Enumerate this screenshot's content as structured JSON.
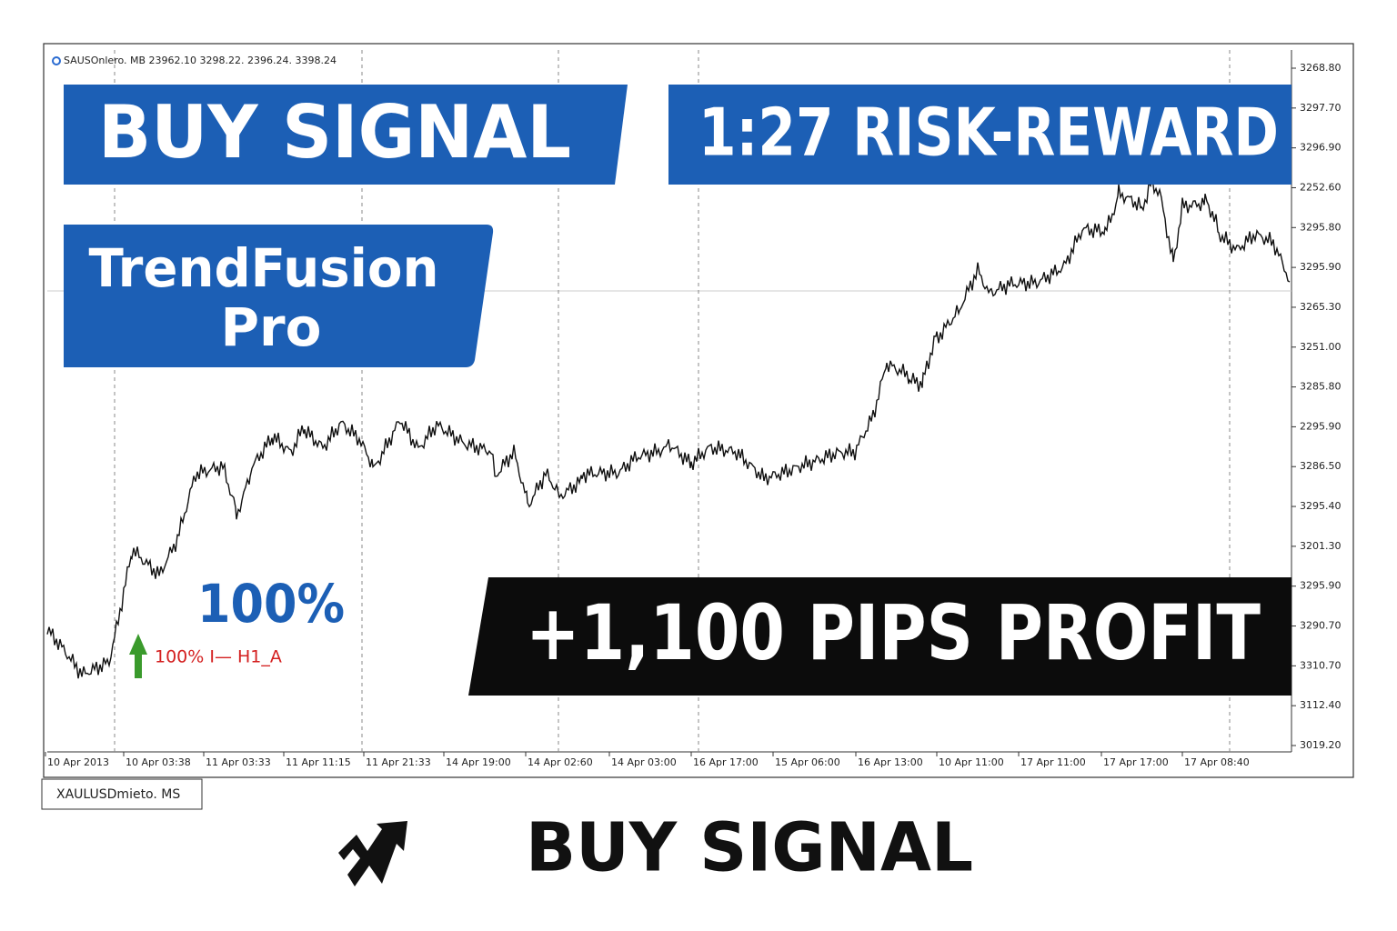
{
  "header": {
    "symbol_info": "SAUSOnlero. MB  23962.10  3298.22. 2396.24. 3398.24"
  },
  "banners": {
    "buy_signal": "BUY SIGNAL",
    "risk_reward": "1:27 RISK-REWARD",
    "product": [
      "TrendFusion",
      "Pro"
    ],
    "profit": "+1,100 PIPS PROFIT"
  },
  "indicator": {
    "percent": "100%",
    "label": "100% I— H1_A"
  },
  "price_axis": [
    "3268.80",
    "3297.70",
    "3296.90",
    "2252.60",
    "3295.80",
    "3295.90",
    "3265.30",
    "3251.00",
    "3285.80",
    "2295.90",
    "3286.50",
    "3295.40",
    "3201.30",
    "3295.90",
    "3290.70",
    "3310.70",
    "3112.40",
    "3019.20"
  ],
  "time_axis": [
    "10 Apr 2013",
    "10 Apr 03:38",
    "11 Apr 03:33",
    "11 Apr 11:15",
    "11 Apr 21:33",
    "14 Apr 19:00",
    "14 Apr 02:60",
    "14 Apr 03:00",
    "16 Apr 17:00",
    "15 Apr 06:00",
    "16 Apr 13:00",
    "10 Apr 11:00",
    "17 Apr 11:00",
    "17 Apr 17:00",
    "17 Apr 08:40"
  ],
  "symbol_tab": "XAULUSDmieto. MS",
  "footer": {
    "title": "BUY SIGNAL"
  }
}
